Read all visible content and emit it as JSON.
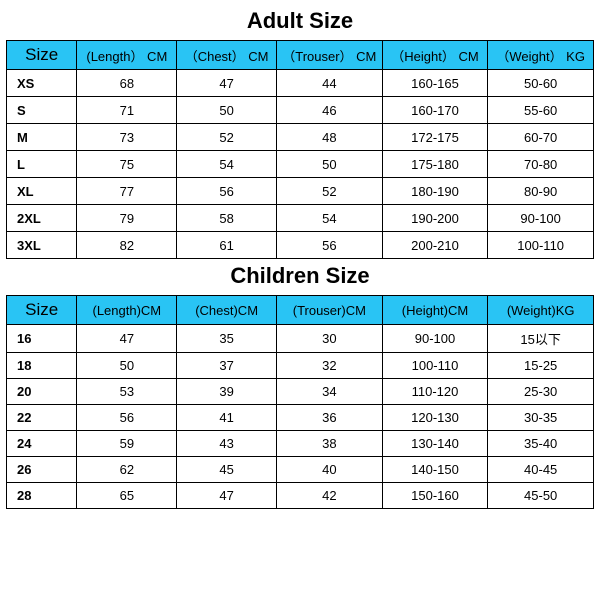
{
  "colors": {
    "header_bg": "#29c4f4",
    "border": "#000000",
    "text": "#000000",
    "bg": "#ffffff"
  },
  "col_widths_pct": [
    12,
    17,
    17,
    18,
    18,
    18
  ],
  "adult": {
    "title": "Adult Size",
    "columns": [
      "Size",
      "(Length） CM",
      "（Chest） CM",
      "（Trouser） CM",
      "（Height） CM",
      "（Weight） KG"
    ],
    "rows": [
      [
        "XS",
        "68",
        "47",
        "44",
        "160-165",
        "50-60"
      ],
      [
        "S",
        "71",
        "50",
        "46",
        "160-170",
        "55-60"
      ],
      [
        "M",
        "73",
        "52",
        "48",
        "172-175",
        "60-70"
      ],
      [
        "L",
        "75",
        "54",
        "50",
        "175-180",
        "70-80"
      ],
      [
        "XL",
        "77",
        "56",
        "52",
        "180-190",
        "80-90"
      ],
      [
        "2XL",
        "79",
        "58",
        "54",
        "190-200",
        "90-100"
      ],
      [
        "3XL",
        "82",
        "61",
        "56",
        "200-210",
        "100-110"
      ]
    ]
  },
  "children": {
    "title": "Children Size",
    "columns": [
      "Size",
      "(Length)CM",
      "(Chest)CM",
      "(Trouser)CM",
      "(Height)CM",
      "(Weight)KG"
    ],
    "rows": [
      [
        "16",
        "47",
        "35",
        "30",
        "90-100",
        "15以下"
      ],
      [
        "18",
        "50",
        "37",
        "32",
        "100-110",
        "15-25"
      ],
      [
        "20",
        "53",
        "39",
        "34",
        "110-120",
        "25-30"
      ],
      [
        "22",
        "56",
        "41",
        "36",
        "120-130",
        "30-35"
      ],
      [
        "24",
        "59",
        "43",
        "38",
        "130-140",
        "35-40"
      ],
      [
        "26",
        "62",
        "45",
        "40",
        "140-150",
        "40-45"
      ],
      [
        "28",
        "65",
        "47",
        "42",
        "150-160",
        "45-50"
      ]
    ]
  }
}
